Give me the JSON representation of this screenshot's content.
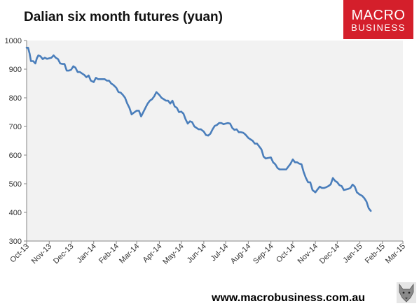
{
  "title": "Dalian six month futures (yuan)",
  "logo": {
    "line1": "MACRO",
    "line2": "BUSINESS"
  },
  "footer": "www.macrobusiness.com.au",
  "colors": {
    "line": "#4a7ebb",
    "plot_bg": "#f2f2f2",
    "logo_bg": "#d41f2b"
  },
  "icons": {
    "mascot": "wolf-icon"
  },
  "chart_data": {
    "type": "line",
    "title": "Dalian six month futures (yuan)",
    "xlabel": "",
    "ylabel": "",
    "ylim": [
      300,
      1000
    ],
    "yticks": [
      300,
      400,
      500,
      600,
      700,
      800,
      900,
      1000
    ],
    "xlim": [
      "2013-10-01",
      "2015-03-01"
    ],
    "xticks": [
      "Oct-13",
      "Nov-13",
      "Dec-13",
      "Jan-14",
      "Feb-14",
      "Mar-14",
      "Apr-14",
      "May-14",
      "Jun-14",
      "Jul-14",
      "Aug-14",
      "Sep-14",
      "Oct-14",
      "Nov-14",
      "Dec-14",
      "Jan-15",
      "Feb-15",
      "Mar-15"
    ],
    "grid": false,
    "legend": "none",
    "series": [
      {
        "values": [
          [
            "2013-10-01",
            975
          ],
          [
            "2013-10-03",
            975
          ],
          [
            "2013-10-05",
            955
          ],
          [
            "2013-10-07",
            928
          ],
          [
            "2013-10-10",
            928
          ],
          [
            "2013-10-13",
            920
          ],
          [
            "2013-10-15",
            938
          ],
          [
            "2013-10-17",
            948
          ],
          [
            "2013-10-20",
            945
          ],
          [
            "2013-10-23",
            935
          ],
          [
            "2013-10-26",
            940
          ],
          [
            "2013-10-29",
            936
          ],
          [
            "2013-11-01",
            938
          ],
          [
            "2013-11-04",
            940
          ],
          [
            "2013-11-07",
            948
          ],
          [
            "2013-11-10",
            940
          ],
          [
            "2013-11-13",
            935
          ],
          [
            "2013-11-16",
            920
          ],
          [
            "2013-11-19",
            918
          ],
          [
            "2013-11-22",
            918
          ],
          [
            "2013-11-25",
            895
          ],
          [
            "2013-11-28",
            895
          ],
          [
            "2013-12-01",
            898
          ],
          [
            "2013-12-04",
            910
          ],
          [
            "2013-12-07",
            905
          ],
          [
            "2013-12-10",
            890
          ],
          [
            "2013-12-13",
            890
          ],
          [
            "2013-12-16",
            885
          ],
          [
            "2013-12-19",
            880
          ],
          [
            "2013-12-22",
            872
          ],
          [
            "2013-12-25",
            878
          ],
          [
            "2013-12-28",
            860
          ],
          [
            "2014-01-01",
            855
          ],
          [
            "2014-01-04",
            870
          ],
          [
            "2014-01-07",
            865
          ],
          [
            "2014-01-10",
            865
          ],
          [
            "2014-01-13",
            865
          ],
          [
            "2014-01-16",
            865
          ],
          [
            "2014-01-19",
            860
          ],
          [
            "2014-01-22",
            860
          ],
          [
            "2014-01-25",
            850
          ],
          [
            "2014-01-28",
            845
          ],
          [
            "2014-02-01",
            835
          ],
          [
            "2014-02-04",
            820
          ],
          [
            "2014-02-07",
            818
          ],
          [
            "2014-02-10",
            810
          ],
          [
            "2014-02-13",
            800
          ],
          [
            "2014-02-16",
            780
          ],
          [
            "2014-02-19",
            765
          ],
          [
            "2014-02-22",
            742
          ],
          [
            "2014-02-25",
            748
          ],
          [
            "2014-03-01",
            755
          ],
          [
            "2014-03-04",
            755
          ],
          [
            "2014-03-07",
            735
          ],
          [
            "2014-03-10",
            750
          ],
          [
            "2014-03-13",
            765
          ],
          [
            "2014-03-16",
            780
          ],
          [
            "2014-03-19",
            790
          ],
          [
            "2014-03-22",
            795
          ],
          [
            "2014-03-25",
            805
          ],
          [
            "2014-03-28",
            820
          ],
          [
            "2014-04-01",
            810
          ],
          [
            "2014-04-04",
            800
          ],
          [
            "2014-04-07",
            795
          ],
          [
            "2014-04-10",
            790
          ],
          [
            "2014-04-13",
            790
          ],
          [
            "2014-04-16",
            780
          ],
          [
            "2014-04-19",
            790
          ],
          [
            "2014-04-22",
            770
          ],
          [
            "2014-04-25",
            765
          ],
          [
            "2014-04-28",
            750
          ],
          [
            "2014-05-01",
            752
          ],
          [
            "2014-05-04",
            745
          ],
          [
            "2014-05-07",
            725
          ],
          [
            "2014-05-10",
            710
          ],
          [
            "2014-05-13",
            718
          ],
          [
            "2014-05-16",
            715
          ],
          [
            "2014-05-19",
            700
          ],
          [
            "2014-05-22",
            695
          ],
          [
            "2014-05-25",
            690
          ],
          [
            "2014-05-28",
            690
          ],
          [
            "2014-06-01",
            682
          ],
          [
            "2014-06-04",
            670
          ],
          [
            "2014-06-07",
            668
          ],
          [
            "2014-06-10",
            675
          ],
          [
            "2014-06-13",
            690
          ],
          [
            "2014-06-16",
            702
          ],
          [
            "2014-06-19",
            705
          ],
          [
            "2014-06-22",
            712
          ],
          [
            "2014-06-25",
            712
          ],
          [
            "2014-06-28",
            708
          ],
          [
            "2014-07-01",
            710
          ],
          [
            "2014-07-04",
            712
          ],
          [
            "2014-07-07",
            710
          ],
          [
            "2014-07-10",
            695
          ],
          [
            "2014-07-13",
            688
          ],
          [
            "2014-07-16",
            690
          ],
          [
            "2014-07-19",
            680
          ],
          [
            "2014-07-22",
            680
          ],
          [
            "2014-07-25",
            678
          ],
          [
            "2014-07-28",
            672
          ],
          [
            "2014-08-01",
            660
          ],
          [
            "2014-08-04",
            655
          ],
          [
            "2014-08-07",
            650
          ],
          [
            "2014-08-10",
            640
          ],
          [
            "2014-08-13",
            640
          ],
          [
            "2014-08-16",
            630
          ],
          [
            "2014-08-19",
            620
          ],
          [
            "2014-08-22",
            595
          ],
          [
            "2014-08-25",
            588
          ],
          [
            "2014-08-28",
            590
          ],
          [
            "2014-09-01",
            592
          ],
          [
            "2014-09-04",
            575
          ],
          [
            "2014-09-07",
            568
          ],
          [
            "2014-09-10",
            555
          ],
          [
            "2014-09-13",
            550
          ],
          [
            "2014-09-16",
            550
          ],
          [
            "2014-09-19",
            550
          ],
          [
            "2014-09-22",
            550
          ],
          [
            "2014-09-25",
            560
          ],
          [
            "2014-09-28",
            570
          ],
          [
            "2014-10-01",
            585
          ],
          [
            "2014-10-04",
            575
          ],
          [
            "2014-10-07",
            575
          ],
          [
            "2014-10-10",
            570
          ],
          [
            "2014-10-13",
            568
          ],
          [
            "2014-10-16",
            540
          ],
          [
            "2014-10-19",
            520
          ],
          [
            "2014-10-22",
            505
          ],
          [
            "2014-10-25",
            505
          ],
          [
            "2014-10-28",
            478
          ],
          [
            "2014-11-01",
            470
          ],
          [
            "2014-11-04",
            480
          ],
          [
            "2014-11-07",
            490
          ],
          [
            "2014-11-10",
            485
          ],
          [
            "2014-11-13",
            485
          ],
          [
            "2014-11-16",
            488
          ],
          [
            "2014-11-19",
            492
          ],
          [
            "2014-11-22",
            498
          ],
          [
            "2014-11-25",
            520
          ],
          [
            "2014-11-28",
            510
          ],
          [
            "2014-12-01",
            505
          ],
          [
            "2014-12-04",
            495
          ],
          [
            "2014-12-07",
            492
          ],
          [
            "2014-12-10",
            478
          ],
          [
            "2014-12-13",
            480
          ],
          [
            "2014-12-16",
            482
          ],
          [
            "2014-12-19",
            485
          ],
          [
            "2014-12-22",
            497
          ],
          [
            "2014-12-25",
            490
          ],
          [
            "2014-12-28",
            470
          ],
          [
            "2015-01-01",
            462
          ],
          [
            "2015-01-04",
            458
          ],
          [
            "2015-01-07",
            450
          ],
          [
            "2015-01-10",
            438
          ],
          [
            "2015-01-13",
            415
          ],
          [
            "2015-01-16",
            405
          ]
        ]
      }
    ]
  }
}
